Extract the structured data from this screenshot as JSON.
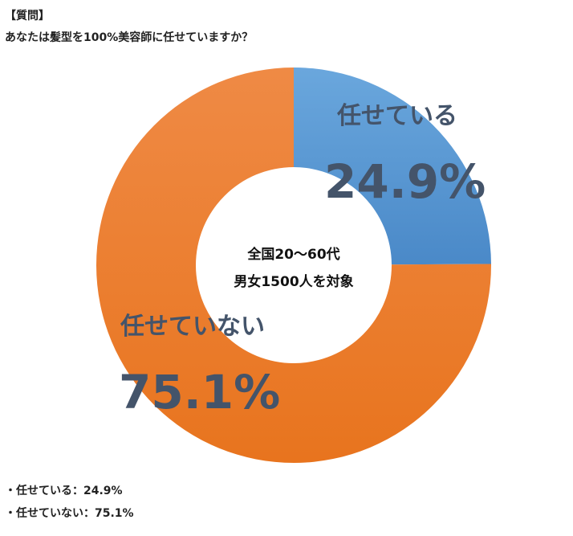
{
  "header": {
    "tag": "【質問】",
    "question": "あなたは髪型を100%美容師に任せていますか？"
  },
  "chart_data": {
    "type": "pie",
    "title": "",
    "center_label": [
      "全国20～60代",
      "男女1500人を対象"
    ],
    "slices": [
      {
        "label": "任せている",
        "value": 24.9,
        "value_label": "24.9%",
        "color": "#5b9bd5"
      },
      {
        "label": "任せていない",
        "value": 75.1,
        "value_label": "75.1%",
        "color": "#ed7d31"
      }
    ],
    "label_color": "#44546a"
  },
  "legend": [
    {
      "prefix": "・",
      "label": "任せている",
      "sep": "：",
      "value": "24.9%"
    },
    {
      "prefix": "・",
      "label": "任せていない",
      "sep": "：",
      "value": "75.1%"
    }
  ]
}
